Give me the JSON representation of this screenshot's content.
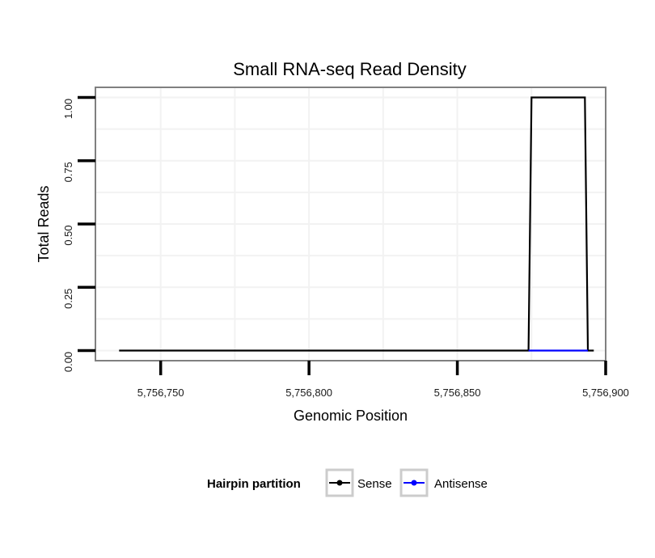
{
  "chart_data": {
    "type": "line",
    "title": "Small RNA-seq Read Density",
    "xlabel": "Genomic Position",
    "ylabel": "Total Reads",
    "xlim": [
      5756728,
      5756900
    ],
    "ylim": [
      -0.04,
      1.04
    ],
    "x_ticks": [
      5756750,
      5756800,
      5756850,
      5756900
    ],
    "x_tick_labels": [
      "5,756,750",
      "5,756,800",
      "5,756,850",
      "5,756,900"
    ],
    "y_ticks": [
      0,
      0.25,
      0.5,
      0.75,
      1
    ],
    "y_tick_labels": [
      "0.00",
      "0.25",
      "0.50",
      "0.75",
      "1.00"
    ],
    "grid": true,
    "legend": {
      "title": "Hairpin partition",
      "position": "bottom",
      "entries": [
        {
          "name": "Sense",
          "color": "#000000"
        },
        {
          "name": "Antisense",
          "color": "#0000ff"
        }
      ]
    },
    "series": [
      {
        "name": "Sense",
        "color": "#000000",
        "x": [
          5756736,
          5756874,
          5756875,
          5756893,
          5756894,
          5756896
        ],
        "y": [
          0,
          0,
          1,
          1,
          0,
          0
        ]
      },
      {
        "name": "Antisense",
        "color": "#0000ff",
        "x": [
          5756874,
          5756894
        ],
        "y": [
          0,
          0
        ]
      }
    ]
  }
}
